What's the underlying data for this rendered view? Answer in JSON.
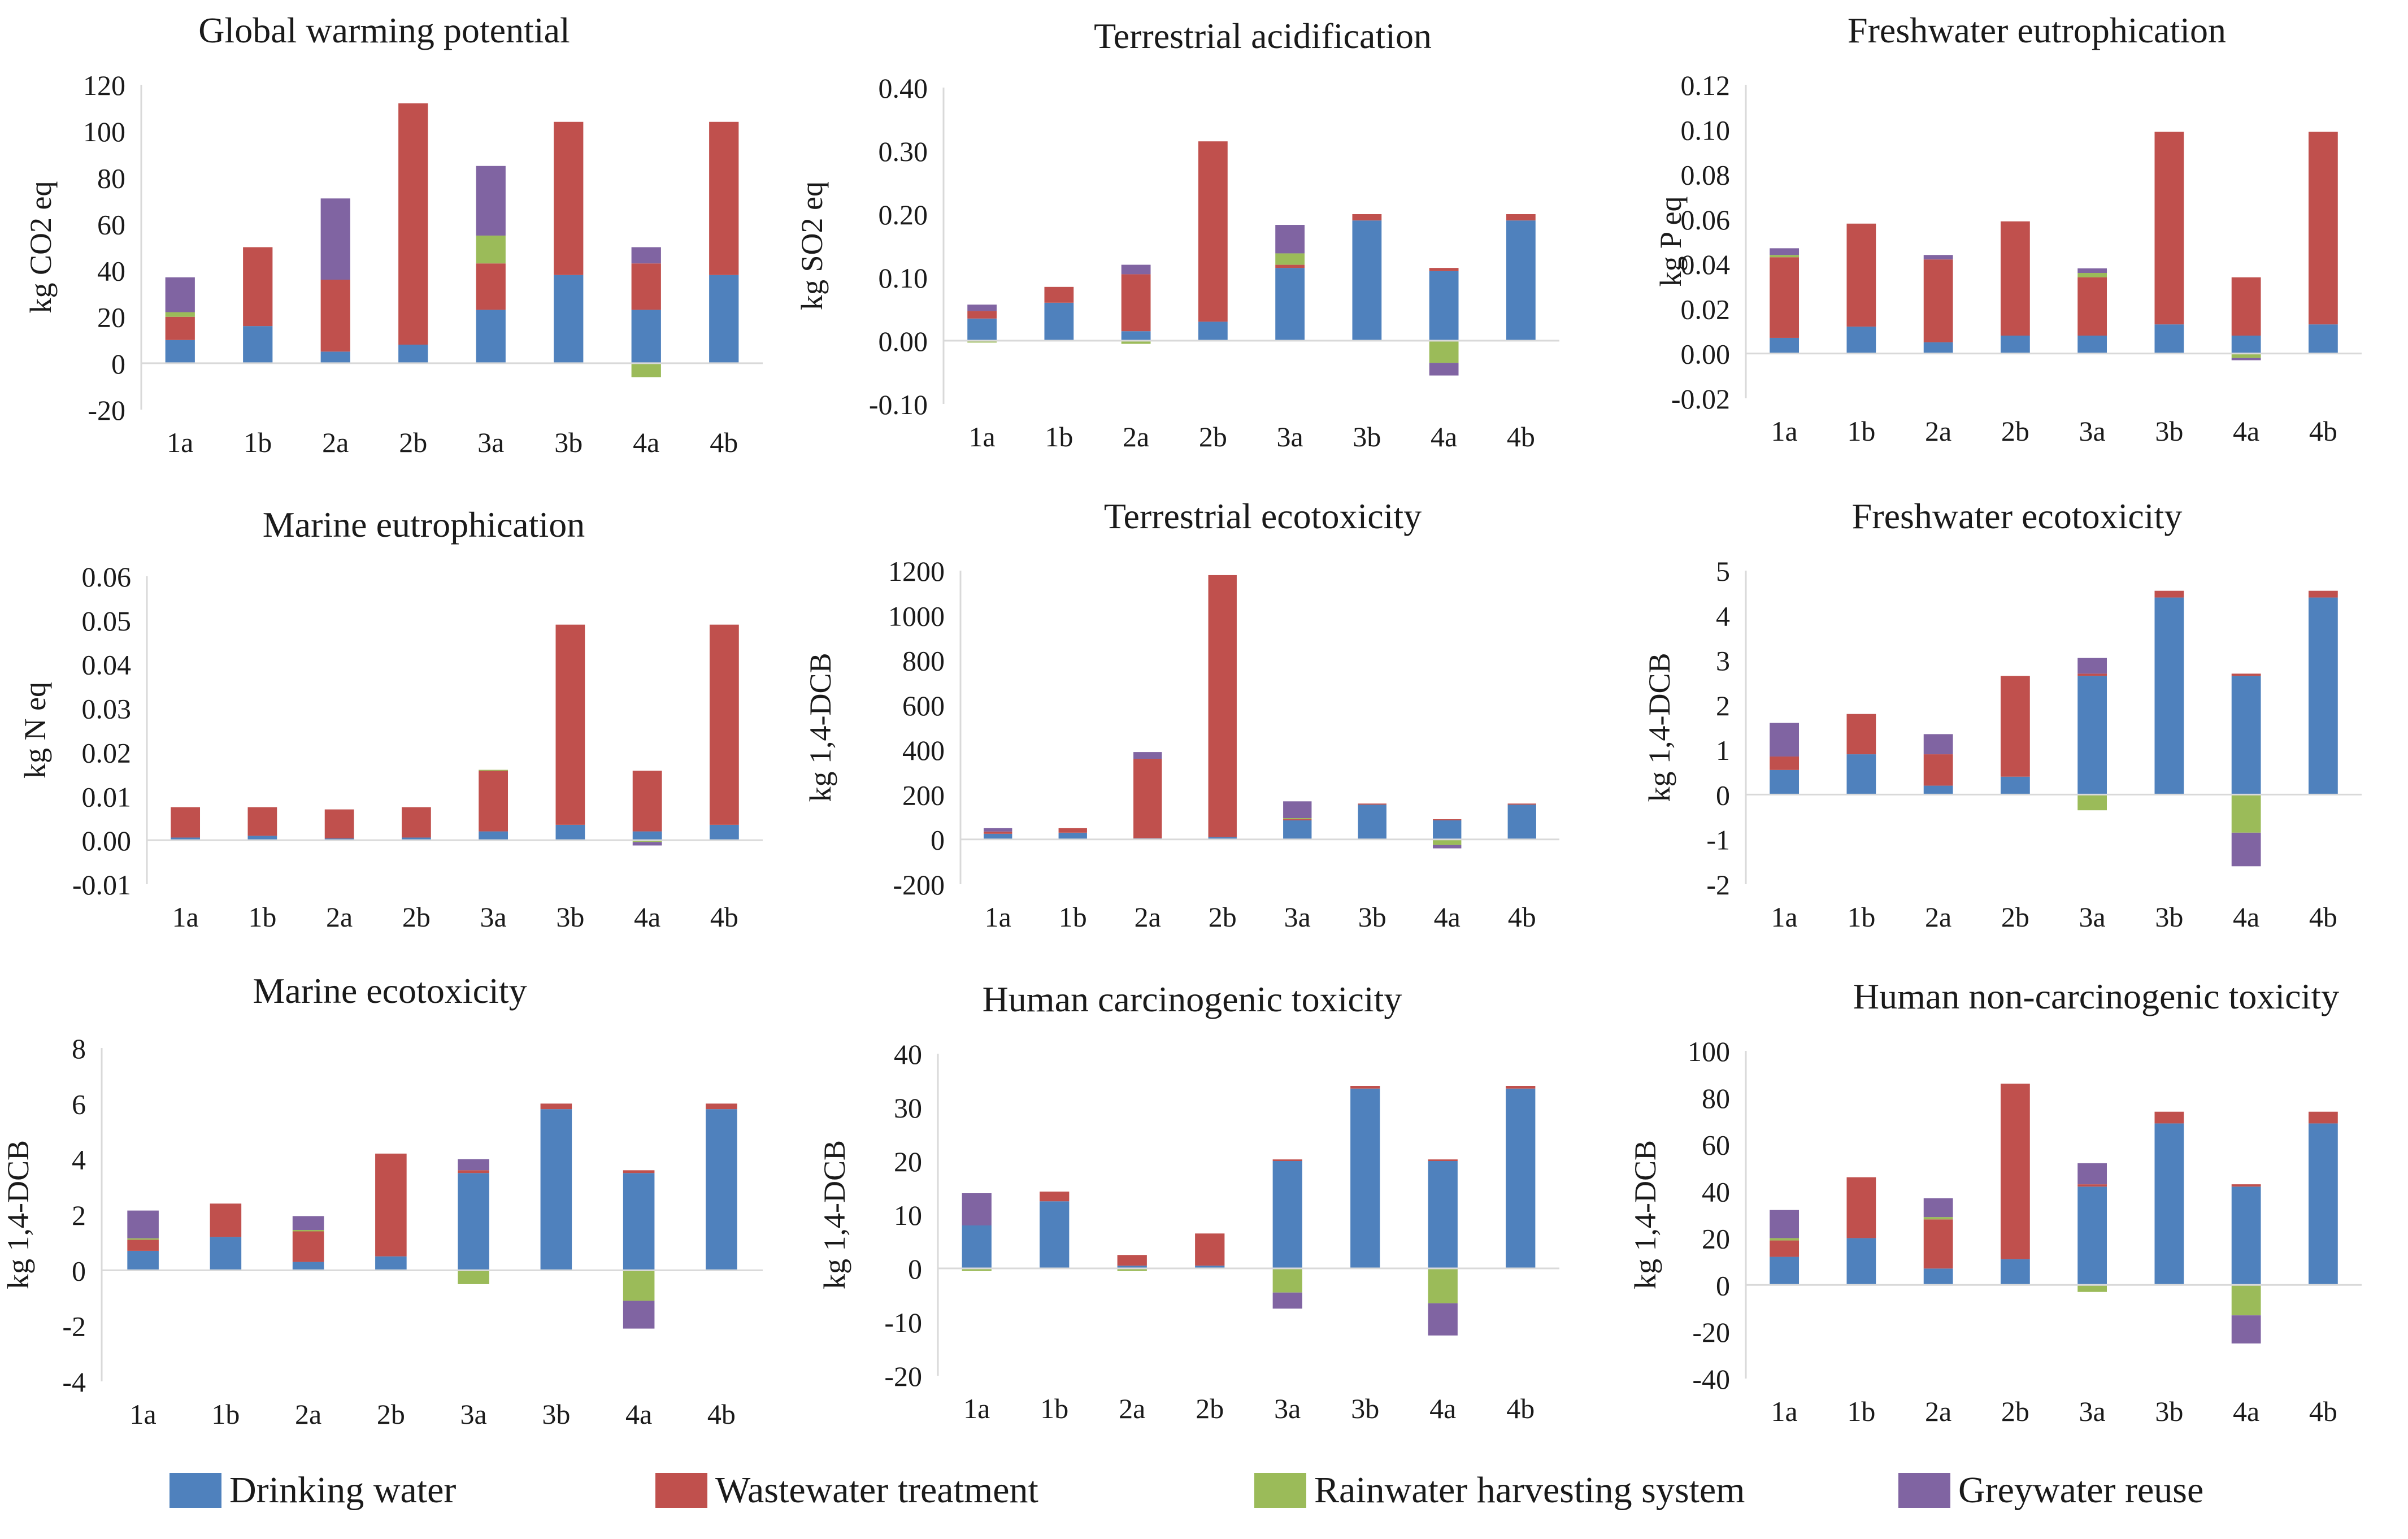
{
  "colors": {
    "drinking": "#4f81bd",
    "wastewater": "#c0504d",
    "rainwater": "#9bbb59",
    "greywater": "#8064a2",
    "axis": "#d9d9d9",
    "text": "#1a1a1a"
  },
  "legend": {
    "items": [
      {
        "key": "drinking",
        "label": "Drinking water"
      },
      {
        "key": "wastewater",
        "label": "Wastewater treatment"
      },
      {
        "key": "rainwater",
        "label": "Rainwater harvesting system"
      },
      {
        "key": "greywater",
        "label": "Greywater reuse"
      }
    ]
  },
  "chart_data": [
    {
      "type": "bar",
      "stacked": true,
      "title": "Global warming potential",
      "ylabel": "kg CO2 eq",
      "categories": [
        "1a",
        "1b",
        "2a",
        "2b",
        "3a",
        "3b",
        "4a",
        "4b"
      ],
      "ylim": [
        -20,
        120
      ],
      "yticks": [
        -20,
        0,
        20,
        40,
        60,
        80,
        100,
        120
      ],
      "decimals": 0,
      "series": [
        {
          "name": "Drinking water",
          "key": "drinking",
          "values": [
            10,
            16,
            5,
            8,
            23,
            38,
            23,
            38
          ]
        },
        {
          "name": "Wastewater treatment",
          "key": "wastewater",
          "values": [
            10,
            34,
            31,
            104,
            20,
            66,
            20,
            66
          ]
        },
        {
          "name": "Rainwater harvesting system",
          "key": "rainwater",
          "values": [
            2,
            0,
            0,
            0,
            12,
            0,
            -6,
            0
          ]
        },
        {
          "name": "Greywater reuse",
          "key": "greywater",
          "values": [
            15,
            0,
            35,
            0,
            30,
            0,
            7,
            0
          ]
        }
      ]
    },
    {
      "type": "bar",
      "stacked": true,
      "title": "Terrestrial acidification",
      "ylabel": "kg SO2 eq",
      "categories": [
        "1a",
        "1b",
        "2a",
        "2b",
        "3a",
        "3b",
        "4a",
        "4b"
      ],
      "ylim": [
        -0.1,
        0.4
      ],
      "yticks": [
        -0.1,
        0,
        0.1,
        0.2,
        0.3,
        0.4
      ],
      "decimals": 2,
      "series": [
        {
          "name": "Drinking water",
          "key": "drinking",
          "values": [
            0.035,
            0.06,
            0.015,
            0.03,
            0.115,
            0.19,
            0.11,
            0.19
          ]
        },
        {
          "name": "Wastewater treatment",
          "key": "wastewater",
          "values": [
            0.012,
            0.025,
            0.09,
            0.285,
            0.005,
            0.01,
            0.005,
            0.01
          ]
        },
        {
          "name": "Rainwater harvesting system",
          "key": "rainwater",
          "values": [
            -0.003,
            0,
            -0.005,
            0,
            0.018,
            0,
            -0.035,
            0
          ]
        },
        {
          "name": "Greywater reuse",
          "key": "greywater",
          "values": [
            0.01,
            0,
            0.015,
            0,
            0.045,
            0,
            -0.02,
            0
          ]
        }
      ]
    },
    {
      "type": "bar",
      "stacked": true,
      "title": "Freshwater eutrophication",
      "ylabel": "kg P eq",
      "categories": [
        "1a",
        "1b",
        "2a",
        "2b",
        "3a",
        "3b",
        "4a",
        "4b"
      ],
      "ylim": [
        -0.02,
        0.12
      ],
      "yticks": [
        -0.02,
        0,
        0.02,
        0.04,
        0.06,
        0.08,
        0.1,
        0.12
      ],
      "decimals": 2,
      "series": [
        {
          "name": "Drinking water",
          "key": "drinking",
          "values": [
            0.007,
            0.012,
            0.005,
            0.008,
            0.008,
            0.013,
            0.008,
            0.013
          ]
        },
        {
          "name": "Wastewater treatment",
          "key": "wastewater",
          "values": [
            0.036,
            0.046,
            0.037,
            0.051,
            0.026,
            0.086,
            0.026,
            0.086
          ]
        },
        {
          "name": "Rainwater harvesting system",
          "key": "rainwater",
          "values": [
            0.001,
            0,
            0,
            0,
            0.002,
            0,
            -0.002,
            0
          ]
        },
        {
          "name": "Greywater reuse",
          "key": "greywater",
          "values": [
            0.003,
            0,
            0.002,
            0,
            0.002,
            0,
            -0.001,
            0
          ]
        }
      ]
    },
    {
      "type": "bar",
      "stacked": true,
      "title": "Marine eutrophication",
      "ylabel": "kg N eq",
      "categories": [
        "1a",
        "1b",
        "2a",
        "2b",
        "3a",
        "3b",
        "4a",
        "4b"
      ],
      "ylim": [
        -0.01,
        0.06
      ],
      "yticks": [
        -0.01,
        0,
        0.01,
        0.02,
        0.03,
        0.04,
        0.05,
        0.06
      ],
      "decimals": 2,
      "series": [
        {
          "name": "Drinking water",
          "key": "drinking",
          "values": [
            0.0006,
            0.001,
            0.0004,
            0.0006,
            0.002,
            0.0035,
            0.002,
            0.0035
          ]
        },
        {
          "name": "Wastewater treatment",
          "key": "wastewater",
          "values": [
            0.0069,
            0.0065,
            0.0066,
            0.0069,
            0.0138,
            0.0455,
            0.0138,
            0.0455
          ]
        },
        {
          "name": "Rainwater harvesting system",
          "key": "rainwater",
          "values": [
            0,
            0,
            0,
            0,
            0.0002,
            0,
            -0.0004,
            0
          ]
        },
        {
          "name": "Greywater reuse",
          "key": "greywater",
          "values": [
            0,
            0,
            0,
            0,
            0,
            0,
            -0.0008,
            0
          ]
        }
      ]
    },
    {
      "type": "bar",
      "stacked": true,
      "title": "Terrestrial ecotoxicity",
      "ylabel": "kg 1,4-DCB",
      "categories": [
        "1a",
        "1b",
        "2a",
        "2b",
        "3a",
        "3b",
        "4a",
        "4b"
      ],
      "ylim": [
        -200,
        1200
      ],
      "yticks": [
        -200,
        0,
        200,
        400,
        600,
        800,
        1000,
        1200
      ],
      "decimals": 0,
      "series": [
        {
          "name": "Drinking water",
          "key": "drinking",
          "values": [
            25,
            30,
            5,
            10,
            85,
            155,
            85,
            155
          ]
        },
        {
          "name": "Wastewater treatment",
          "key": "wastewater",
          "values": [
            10,
            20,
            355,
            1170,
            5,
            5,
            5,
            5
          ]
        },
        {
          "name": "Rainwater harvesting system",
          "key": "rainwater",
          "values": [
            -3,
            0,
            0,
            0,
            5,
            0,
            -25,
            0
          ]
        },
        {
          "name": "Greywater reuse",
          "key": "greywater",
          "values": [
            15,
            0,
            30,
            0,
            75,
            0,
            -15,
            0
          ]
        }
      ]
    },
    {
      "type": "bar",
      "stacked": true,
      "title": "Freshwater ecotoxicity",
      "ylabel": "kg 1,4-DCB",
      "categories": [
        "1a",
        "1b",
        "2a",
        "2b",
        "3a",
        "3b",
        "4a",
        "4b"
      ],
      "ylim": [
        -2,
        5
      ],
      "yticks": [
        -2,
        -1,
        0,
        1,
        2,
        3,
        4,
        5
      ],
      "decimals": 0,
      "series": [
        {
          "name": "Drinking water",
          "key": "drinking",
          "values": [
            0.55,
            0.9,
            0.2,
            0.4,
            2.65,
            4.4,
            2.65,
            4.4
          ]
        },
        {
          "name": "Wastewater treatment",
          "key": "wastewater",
          "values": [
            0.3,
            0.9,
            0.7,
            2.25,
            0.05,
            0.15,
            0.05,
            0.15
          ]
        },
        {
          "name": "Rainwater harvesting system",
          "key": "rainwater",
          "values": [
            0,
            0,
            0,
            0,
            -0.35,
            0,
            -0.85,
            0
          ]
        },
        {
          "name": "Greywater reuse",
          "key": "greywater",
          "values": [
            0.75,
            0,
            0.45,
            0,
            0.35,
            0,
            -0.75,
            0
          ]
        }
      ]
    },
    {
      "type": "bar",
      "stacked": true,
      "title": "Marine ecotoxicity",
      "ylabel": "kg 1,4-DCB",
      "categories": [
        "1a",
        "1b",
        "2a",
        "2b",
        "3a",
        "3b",
        "4a",
        "4b"
      ],
      "ylim": [
        -4,
        8
      ],
      "yticks": [
        -4,
        -2,
        0,
        2,
        4,
        6,
        8
      ],
      "decimals": 0,
      "series": [
        {
          "name": "Drinking water",
          "key": "drinking",
          "values": [
            0.7,
            1.2,
            0.3,
            0.5,
            3.5,
            5.8,
            3.5,
            5.8
          ]
        },
        {
          "name": "Wastewater treatment",
          "key": "wastewater",
          "values": [
            0.4,
            1.2,
            1.1,
            3.7,
            0.1,
            0.2,
            0.1,
            0.2
          ]
        },
        {
          "name": "Rainwater harvesting system",
          "key": "rainwater",
          "values": [
            0.05,
            0,
            0.05,
            0,
            -0.5,
            0,
            -1.1,
            0
          ]
        },
        {
          "name": "Greywater reuse",
          "key": "greywater",
          "values": [
            1,
            0,
            0.5,
            0,
            0.4,
            0,
            -1,
            0
          ]
        }
      ]
    },
    {
      "type": "bar",
      "stacked": true,
      "title": "Human carcinogenic toxicity",
      "ylabel": "kg 1,4-DCB",
      "categories": [
        "1a",
        "1b",
        "2a",
        "2b",
        "3a",
        "3b",
        "4a",
        "4b"
      ],
      "ylim": [
        -20,
        40
      ],
      "yticks": [
        -20,
        -10,
        0,
        10,
        20,
        30,
        40
      ],
      "decimals": 0,
      "series": [
        {
          "name": "Drinking water",
          "key": "drinking",
          "values": [
            8,
            12.5,
            0.5,
            0.5,
            20,
            33.5,
            20,
            33.5
          ]
        },
        {
          "name": "Wastewater treatment",
          "key": "wastewater",
          "values": [
            0,
            1.8,
            2,
            6,
            0.3,
            0.5,
            0.3,
            0.5
          ]
        },
        {
          "name": "Rainwater harvesting system",
          "key": "rainwater",
          "values": [
            -0.5,
            0,
            -0.5,
            0,
            -4.5,
            0,
            -6.5,
            0
          ]
        },
        {
          "name": "Greywater reuse",
          "key": "greywater",
          "values": [
            6,
            0,
            0,
            0,
            -3,
            0,
            -6,
            0
          ]
        }
      ]
    },
    {
      "type": "bar",
      "stacked": true,
      "title": "Human non-carcinogenic toxicity",
      "ylabel": "kg 1,4-DCB",
      "categories": [
        "1a",
        "1b",
        "2a",
        "2b",
        "3a",
        "3b",
        "4a",
        "4b"
      ],
      "ylim": [
        -40,
        100
      ],
      "yticks": [
        -40,
        -20,
        0,
        20,
        40,
        60,
        80,
        100
      ],
      "decimals": 0,
      "series": [
        {
          "name": "Drinking water",
          "key": "drinking",
          "values": [
            12,
            20,
            7,
            11,
            42,
            69,
            42,
            69
          ]
        },
        {
          "name": "Wastewater treatment",
          "key": "wastewater",
          "values": [
            7,
            26,
            21,
            75,
            1,
            5,
            1,
            5
          ]
        },
        {
          "name": "Rainwater harvesting system",
          "key": "rainwater",
          "values": [
            1,
            0,
            1,
            0,
            -3,
            0,
            -13,
            0
          ]
        },
        {
          "name": "Greywater reuse",
          "key": "greywater",
          "values": [
            12,
            0,
            8,
            0,
            9,
            0,
            -12,
            0
          ]
        }
      ]
    }
  ]
}
